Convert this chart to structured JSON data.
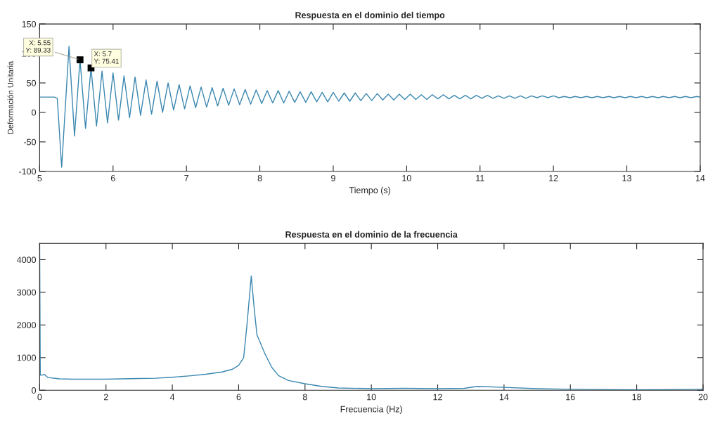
{
  "chart_data": [
    {
      "type": "line",
      "title": "Respuesta en el dominio del tiempo",
      "xlabel": "Tiempo (s)",
      "ylabel": "Deformación Unitaria",
      "xlim": [
        5,
        14
      ],
      "ylim": [
        -100,
        150
      ],
      "xticks": [
        5,
        6,
        7,
        8,
        9,
        10,
        11,
        12,
        13,
        14
      ],
      "yticks": [
        -100,
        -50,
        0,
        50,
        100,
        150
      ],
      "grid": false,
      "legend": false,
      "x": [
        5.0,
        5.2,
        5.24,
        5.3,
        5.4,
        5.475,
        5.55,
        5.625,
        5.7,
        5.775,
        5.85,
        5.925,
        6.0,
        6.075,
        6.15,
        6.225,
        6.3,
        6.375,
        6.45,
        6.525,
        6.6,
        6.675,
        6.75,
        6.825,
        6.9,
        6.975,
        7.05,
        7.125,
        7.2,
        7.275,
        7.35,
        7.425,
        7.5,
        7.575,
        7.65,
        7.725,
        7.8,
        7.875,
        7.95,
        8.025,
        8.1,
        8.175,
        8.25,
        8.325,
        8.4,
        8.475,
        8.55,
        8.625,
        8.7,
        8.775,
        8.85,
        8.925,
        9.0,
        9.075,
        9.15,
        9.225,
        9.3,
        9.375,
        9.45,
        9.525,
        9.6,
        9.675,
        9.75,
        9.825,
        9.9,
        9.975,
        10.05,
        10.125,
        10.2,
        10.275,
        10.35,
        10.425,
        10.5,
        10.575,
        10.65,
        10.725,
        10.8,
        10.875,
        10.95,
        11.025,
        11.1,
        11.175,
        11.25,
        11.325,
        11.4,
        11.475,
        11.55,
        11.625,
        11.7,
        11.775,
        11.85,
        11.925,
        12.0,
        12.075,
        12.15,
        12.225,
        12.3,
        12.375,
        12.45,
        12.525,
        12.6,
        12.675,
        12.75,
        12.825,
        12.9,
        12.975,
        13.05,
        13.125,
        13.2,
        13.275,
        13.35,
        13.425,
        13.5,
        13.575,
        13.65,
        13.725,
        13.8,
        13.875,
        13.95,
        14.0
      ],
      "series": [
        {
          "color": "#3a87b0",
          "values": [
            26,
            26,
            24,
            -93,
            112,
            -40,
            89.33,
            -27,
            75.41,
            -23,
            70,
            -18,
            67,
            -13,
            62,
            -9,
            60,
            -5,
            55,
            -3,
            53,
            0,
            50,
            4,
            47,
            6,
            45,
            8,
            43,
            9,
            42,
            11,
            41,
            12,
            40,
            13,
            39,
            14,
            38,
            15,
            37,
            16,
            37,
            16,
            36,
            17,
            35,
            17,
            35,
            18,
            34,
            18,
            34,
            19,
            33,
            19,
            33,
            20,
            32,
            20,
            32,
            21,
            31,
            21,
            31,
            22,
            31,
            22,
            30,
            22,
            30,
            23,
            30,
            23,
            29,
            23,
            29,
            23,
            29,
            24,
            29,
            24,
            28,
            24,
            28,
            24,
            28,
            24,
            28,
            25,
            28,
            25,
            28,
            25,
            27,
            25,
            27,
            25,
            27,
            25,
            27,
            25,
            27,
            25,
            27,
            25,
            27,
            25,
            27,
            25,
            27,
            25,
            27,
            25,
            27,
            25,
            27,
            25,
            27,
            26
          ]
        }
      ],
      "annotations": [
        {
          "text": "X: 5.55\nY: 89.33",
          "x": 5.55,
          "y": 89.33
        },
        {
          "text": "X: 5.7\nY: 75.41",
          "x": 5.7,
          "y": 75.41
        }
      ]
    },
    {
      "type": "line",
      "title": "Respuesta en el dominio de la frecuencia",
      "xlabel": "Frecuencia (Hz)",
      "xlim": [
        0,
        20
      ],
      "ylim": [
        0,
        4500
      ],
      "xticks": [
        0,
        2,
        4,
        6,
        8,
        10,
        12,
        14,
        16,
        18,
        20
      ],
      "yticks": [
        0,
        1000,
        2000,
        3000,
        4000
      ],
      "grid": false,
      "legend": false,
      "x": [
        0,
        0.02,
        0.15,
        0.25,
        0.6,
        1,
        2,
        3,
        3.5,
        4,
        4.5,
        5,
        5.5,
        5.8,
        6.0,
        6.15,
        6.25,
        6.38,
        6.45,
        6.55,
        6.8,
        7.0,
        7.2,
        7.5,
        8,
        8.5,
        9,
        10,
        11,
        12,
        12.8,
        13.2,
        14,
        15,
        16,
        17,
        18,
        19,
        20
      ],
      "series": [
        {
          "color": "#3a87b0",
          "values": [
            4500,
            460,
            480,
            390,
            350,
            340,
            340,
            360,
            370,
            400,
            440,
            490,
            560,
            640,
            760,
            1000,
            2000,
            3500,
            2700,
            1700,
            1100,
            700,
            450,
            300,
            200,
            120,
            70,
            50,
            60,
            50,
            60,
            120,
            90,
            50,
            30,
            20,
            15,
            20,
            30
          ]
        }
      ]
    }
  ]
}
